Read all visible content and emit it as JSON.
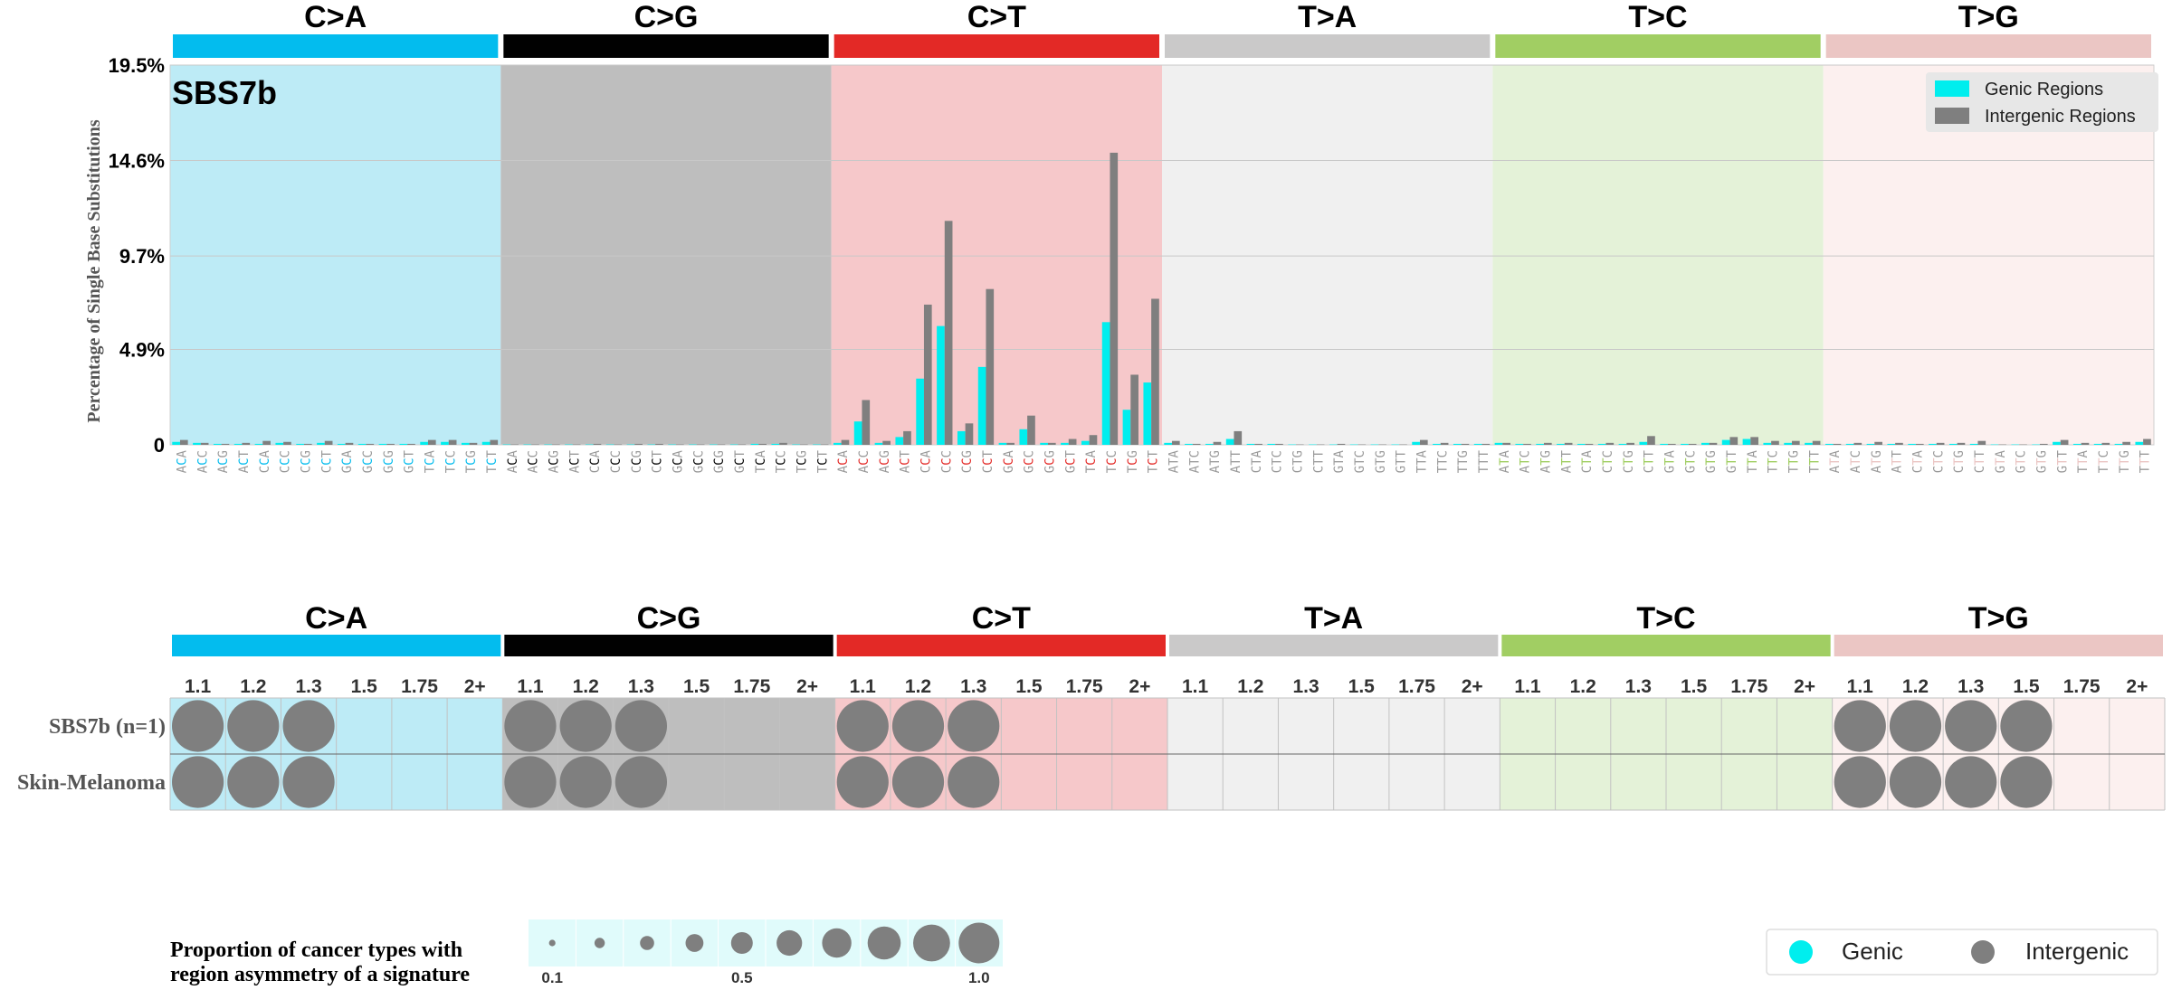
{
  "chart_data": [
    {
      "type": "bar",
      "title": "SBS7b",
      "ylabel": "Percentage of Single Base Substitutions",
      "xlabel": "",
      "ylim": [
        0,
        19.5
      ],
      "yticks": [
        0,
        4.9,
        9.7,
        14.6,
        19.5
      ],
      "ytick_labels": [
        "0",
        "4.9%",
        "9.7%",
        "14.6%",
        "19.5%"
      ],
      "grid": true,
      "legend_position": "top-right",
      "legend": [
        {
          "label": "Genic Regions",
          "color": "#00eeee"
        },
        {
          "label": "Intergenic Regions",
          "color": "#7f7f7f"
        }
      ],
      "mutation_types": [
        "C>A",
        "C>G",
        "C>T",
        "T>A",
        "T>C",
        "T>G"
      ],
      "type_colors": [
        "#03bcee",
        "#010101",
        "#e32926",
        "#cac9c9",
        "#a1ce63",
        "#ebc6c4"
      ],
      "panel_colors": [
        "#bdebf6",
        "#bebebe",
        "#f6c8ca",
        "#f0f0f0",
        "#e4f2d8",
        "#fcf0ef"
      ],
      "type_label_colors": [
        "#03bcee",
        "#010101",
        "#e32926",
        "#9f9f9f",
        "#a1ce63",
        "#ebc6c4"
      ],
      "categories": [
        "ACA",
        "ACC",
        "ACG",
        "ACT",
        "CCA",
        "CCC",
        "CCG",
        "CCT",
        "GCA",
        "GCC",
        "GCG",
        "GCT",
        "TCA",
        "TCC",
        "TCG",
        "TCT",
        "ACA",
        "ACC",
        "ACG",
        "ACT",
        "CCA",
        "CCC",
        "CCG",
        "CCT",
        "GCA",
        "GCC",
        "GCG",
        "GCT",
        "TCA",
        "TCC",
        "TCG",
        "TCT",
        "ACA",
        "ACC",
        "ACG",
        "ACT",
        "CCA",
        "CCC",
        "CCG",
        "CCT",
        "GCA",
        "GCC",
        "GCG",
        "GCT",
        "TCA",
        "TCC",
        "TCG",
        "TCT",
        "ATA",
        "ATC",
        "ATG",
        "ATT",
        "CTA",
        "CTC",
        "CTG",
        "CTT",
        "GTA",
        "GTC",
        "GTG",
        "GTT",
        "TTA",
        "TTC",
        "TTG",
        "TTT",
        "ATA",
        "ATC",
        "ATG",
        "ATT",
        "CTA",
        "CTC",
        "CTG",
        "CTT",
        "GTA",
        "GTC",
        "GTG",
        "GTT",
        "TTA",
        "TTC",
        "TTG",
        "TTT",
        "ATA",
        "ATC",
        "ATG",
        "ATT",
        "CTA",
        "CTC",
        "CTG",
        "CTT",
        "GTA",
        "GTC",
        "GTG",
        "GTT",
        "TTA",
        "TTC",
        "TTG",
        "TTT"
      ],
      "series": [
        {
          "name": "Genic Regions",
          "values": [
            0.15,
            0.1,
            0.05,
            0.05,
            0.05,
            0.1,
            0.05,
            0.1,
            0.05,
            0.05,
            0.05,
            0.05,
            0.15,
            0.15,
            0.1,
            0.15,
            0.02,
            0.02,
            0.02,
            0.02,
            0.02,
            0.02,
            0.02,
            0.02,
            0.02,
            0.02,
            0.02,
            0.02,
            0.05,
            0.05,
            0.02,
            0.02,
            0.1,
            1.2,
            0.1,
            0.4,
            3.4,
            6.1,
            0.7,
            4.0,
            0.1,
            0.8,
            0.1,
            0.1,
            0.2,
            6.3,
            1.8,
            3.2,
            0.1,
            0.05,
            0.05,
            0.3,
            0.05,
            0.05,
            0.02,
            0.02,
            0.02,
            0.02,
            0.02,
            0.02,
            0.15,
            0.05,
            0.05,
            0.05,
            0.1,
            0.05,
            0.05,
            0.05,
            0.05,
            0.05,
            0.05,
            0.15,
            0.05,
            0.05,
            0.1,
            0.25,
            0.3,
            0.1,
            0.1,
            0.1,
            0.05,
            0.05,
            0.05,
            0.05,
            0.05,
            0.05,
            0.05,
            0.05,
            0.02,
            0.02,
            0.02,
            0.15,
            0.05,
            0.05,
            0.05,
            0.15
          ]
        },
        {
          "name": "Intergenic Regions",
          "values": [
            0.25,
            0.1,
            0.05,
            0.1,
            0.2,
            0.15,
            0.05,
            0.2,
            0.1,
            0.05,
            0.05,
            0.05,
            0.25,
            0.25,
            0.1,
            0.25,
            0.02,
            0.02,
            0.02,
            0.02,
            0.05,
            0.02,
            0.05,
            0.05,
            0.02,
            0.02,
            0.02,
            0.02,
            0.05,
            0.1,
            0.02,
            0.02,
            0.25,
            2.3,
            0.2,
            0.7,
            7.2,
            11.5,
            1.1,
            8.0,
            0.1,
            1.5,
            0.1,
            0.3,
            0.5,
            15.0,
            3.6,
            7.5,
            0.2,
            0.05,
            0.15,
            0.7,
            0.05,
            0.05,
            0.02,
            0.02,
            0.05,
            0.02,
            0.02,
            0.02,
            0.25,
            0.1,
            0.05,
            0.05,
            0.1,
            0.05,
            0.1,
            0.1,
            0.05,
            0.1,
            0.1,
            0.45,
            0.05,
            0.05,
            0.1,
            0.4,
            0.4,
            0.2,
            0.2,
            0.2,
            0.05,
            0.1,
            0.15,
            0.1,
            0.05,
            0.1,
            0.1,
            0.2,
            0.02,
            0.02,
            0.05,
            0.25,
            0.1,
            0.1,
            0.15,
            0.3
          ]
        }
      ]
    },
    {
      "type": "scatter",
      "title": "region asymmetry",
      "mutation_types": [
        "C>A",
        "C>G",
        "C>T",
        "T>A",
        "T>C",
        "T>G"
      ],
      "fold_labels": [
        "1.1",
        "1.2",
        "1.3",
        "1.5",
        "1.75",
        "2+"
      ],
      "rows": [
        "SBS7b (n=1)",
        "Skin-Melanoma"
      ],
      "points": [
        {
          "row": 0,
          "type": 0,
          "fold": 0,
          "proportion": 1.0,
          "region": "Intergenic"
        },
        {
          "row": 0,
          "type": 0,
          "fold": 1,
          "proportion": 1.0,
          "region": "Intergenic"
        },
        {
          "row": 0,
          "type": 0,
          "fold": 2,
          "proportion": 1.0,
          "region": "Intergenic"
        },
        {
          "row": 0,
          "type": 1,
          "fold": 0,
          "proportion": 1.0,
          "region": "Intergenic"
        },
        {
          "row": 0,
          "type": 1,
          "fold": 1,
          "proportion": 1.0,
          "region": "Intergenic"
        },
        {
          "row": 0,
          "type": 1,
          "fold": 2,
          "proportion": 1.0,
          "region": "Intergenic"
        },
        {
          "row": 0,
          "type": 2,
          "fold": 0,
          "proportion": 1.0,
          "region": "Intergenic"
        },
        {
          "row": 0,
          "type": 2,
          "fold": 1,
          "proportion": 1.0,
          "region": "Intergenic"
        },
        {
          "row": 0,
          "type": 2,
          "fold": 2,
          "proportion": 1.0,
          "region": "Intergenic"
        },
        {
          "row": 0,
          "type": 5,
          "fold": 0,
          "proportion": 1.0,
          "region": "Intergenic"
        },
        {
          "row": 0,
          "type": 5,
          "fold": 1,
          "proportion": 1.0,
          "region": "Intergenic"
        },
        {
          "row": 0,
          "type": 5,
          "fold": 2,
          "proportion": 1.0,
          "region": "Intergenic"
        },
        {
          "row": 0,
          "type": 5,
          "fold": 3,
          "proportion": 1.0,
          "region": "Intergenic"
        },
        {
          "row": 1,
          "type": 0,
          "fold": 0,
          "proportion": 1.0,
          "region": "Intergenic"
        },
        {
          "row": 1,
          "type": 0,
          "fold": 1,
          "proportion": 1.0,
          "region": "Intergenic"
        },
        {
          "row": 1,
          "type": 0,
          "fold": 2,
          "proportion": 1.0,
          "region": "Intergenic"
        },
        {
          "row": 1,
          "type": 1,
          "fold": 0,
          "proportion": 1.0,
          "region": "Intergenic"
        },
        {
          "row": 1,
          "type": 1,
          "fold": 1,
          "proportion": 1.0,
          "region": "Intergenic"
        },
        {
          "row": 1,
          "type": 1,
          "fold": 2,
          "proportion": 1.0,
          "region": "Intergenic"
        },
        {
          "row": 1,
          "type": 2,
          "fold": 0,
          "proportion": 1.0,
          "region": "Intergenic"
        },
        {
          "row": 1,
          "type": 2,
          "fold": 1,
          "proportion": 1.0,
          "region": "Intergenic"
        },
        {
          "row": 1,
          "type": 2,
          "fold": 2,
          "proportion": 1.0,
          "region": "Intergenic"
        },
        {
          "row": 1,
          "type": 5,
          "fold": 0,
          "proportion": 1.0,
          "region": "Intergenic"
        },
        {
          "row": 1,
          "type": 5,
          "fold": 1,
          "proportion": 1.0,
          "region": "Intergenic"
        },
        {
          "row": 1,
          "type": 5,
          "fold": 2,
          "proportion": 1.0,
          "region": "Intergenic"
        },
        {
          "row": 1,
          "type": 5,
          "fold": 3,
          "proportion": 1.0,
          "region": "Intergenic"
        }
      ],
      "size_legend": {
        "title_lines": [
          "Proportion of cancer types with",
          "region asymmetry of a signature"
        ],
        "values": [
          0.1,
          0.2,
          0.3,
          0.4,
          0.5,
          0.6,
          0.7,
          0.8,
          0.9,
          1.0
        ],
        "tick_labels": [
          "0.1",
          "0.5",
          "1.0"
        ],
        "tick_values": [
          0.1,
          0.5,
          1.0
        ],
        "color": "#7f7f7f",
        "background": "#e0fbfb"
      },
      "color_legend": [
        {
          "label": "Genic",
          "color": "#00eeee"
        },
        {
          "label": "Intergenic",
          "color": "#7f7f7f"
        }
      ]
    }
  ]
}
